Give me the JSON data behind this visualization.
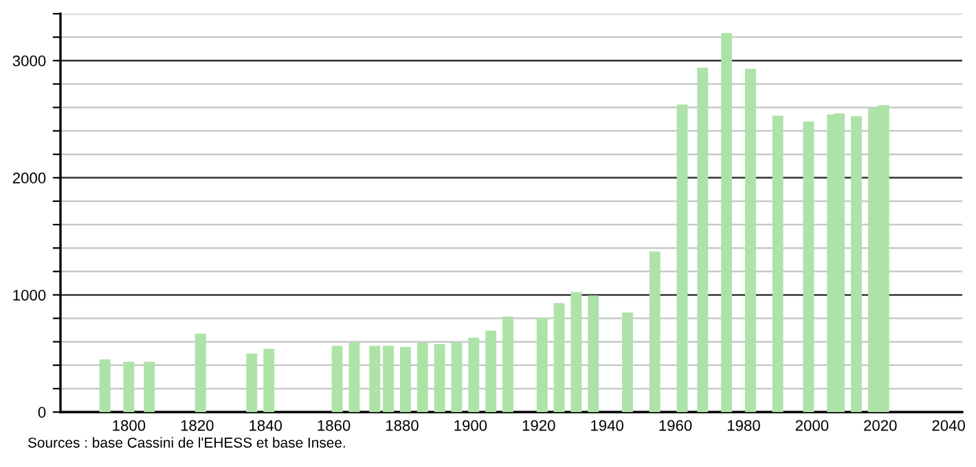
{
  "chart_data": {
    "type": "bar",
    "color": "#ade3a7",
    "x": [
      1793,
      1800,
      1806,
      1821,
      1836,
      1841,
      1861,
      1866,
      1872,
      1876,
      1881,
      1886,
      1891,
      1896,
      1901,
      1906,
      1911,
      1921,
      1926,
      1931,
      1936,
      1946,
      1954,
      1962,
      1968,
      1975,
      1982,
      1990,
      1999,
      2006,
      2008,
      2013,
      2018,
      2021
    ],
    "values": [
      450,
      430,
      430,
      670,
      500,
      540,
      565,
      595,
      565,
      565,
      555,
      595,
      580,
      595,
      635,
      695,
      815,
      805,
      930,
      1025,
      995,
      850,
      1370,
      2625,
      2940,
      3235,
      2930,
      2530,
      2480,
      2540,
      2550,
      2525,
      2595,
      2620
    ],
    "xlim": [
      1780,
      2044
    ],
    "xticks": [
      1800,
      1820,
      1840,
      1860,
      1880,
      1900,
      1920,
      1940,
      1960,
      1980,
      2000,
      2020,
      2040
    ],
    "ylim": [
      0,
      3400
    ],
    "yticks": [
      0,
      {
        "value": 200,
        "label": null
      },
      {
        "value": 400,
        "label": null
      },
      {
        "value": 600,
        "label": null
      },
      {
        "value": 800,
        "label": null
      },
      1000,
      {
        "value": 1200,
        "label": null
      },
      {
        "value": 1400,
        "label": null
      },
      {
        "value": 1600,
        "label": null
      },
      {
        "value": 1800,
        "label": null
      },
      2000,
      {
        "value": 2200,
        "label": null
      },
      {
        "value": 2400,
        "label": null
      },
      {
        "value": 2600,
        "label": null
      },
      {
        "value": 2800,
        "label": null
      },
      3000,
      {
        "value": 3200,
        "label": null
      },
      {
        "value": 3400,
        "label": null
      }
    ],
    "grid": "y",
    "annotations": [
      "Sources : base Cassini de l'EHESS et base Insee."
    ]
  }
}
